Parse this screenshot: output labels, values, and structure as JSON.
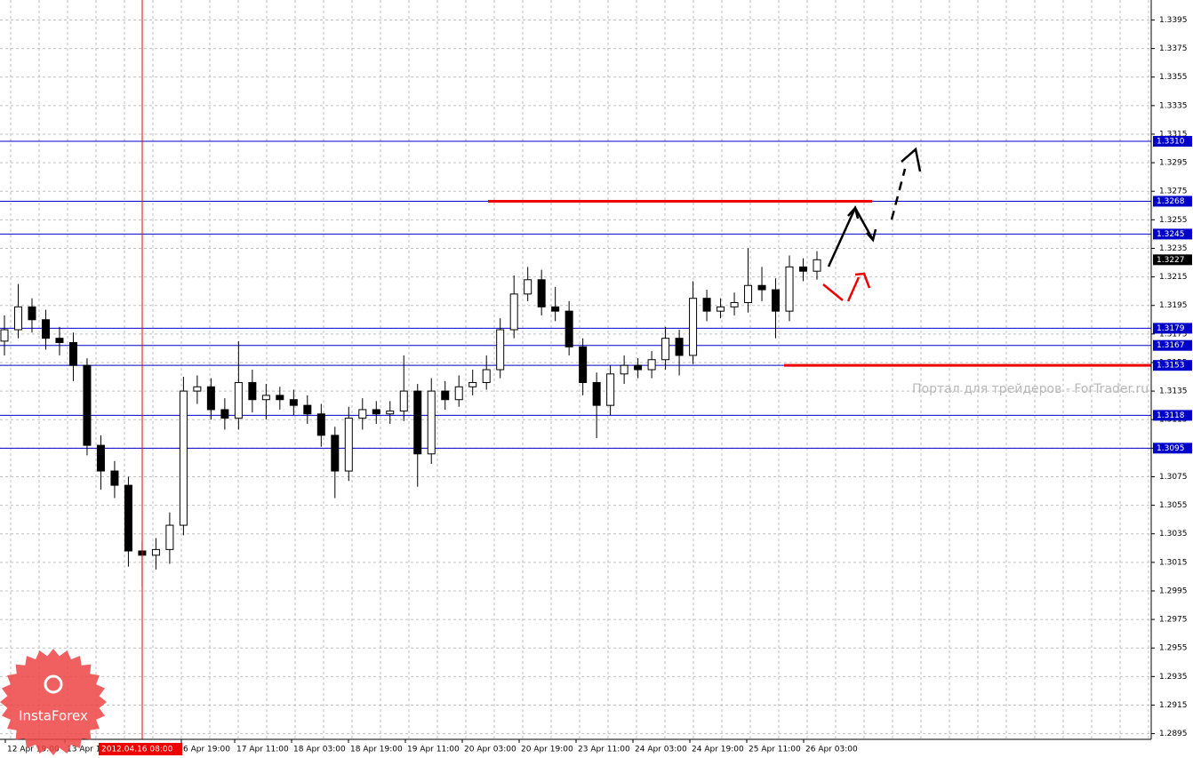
{
  "chart_data": {
    "type": "candlestick",
    "open": [
      1.317,
      1.3178,
      1.3194,
      1.3185,
      1.3172,
      1.3169,
      1.3153,
      1.3097,
      1.3079,
      1.3069,
      1.3023,
      1.302,
      1.3024,
      1.3041,
      1.3135,
      1.3138,
      1.3122,
      1.3116,
      1.3141,
      1.3129,
      1.3132,
      1.3129,
      1.3125,
      1.3119,
      1.3104,
      1.3079,
      1.3116,
      1.3122,
      1.3119,
      1.3121,
      1.3135,
      1.3091,
      1.3135,
      1.3129,
      1.3138,
      1.3141,
      1.315,
      1.3178,
      1.3203,
      1.3213,
      1.3194,
      1.3191,
      1.3166,
      1.3141,
      1.3125,
      1.3147,
      1.3153,
      1.315,
      1.3157,
      1.3172,
      1.316,
      1.32,
      1.3191,
      1.3194,
      1.3197,
      1.3209,
      1.3206,
      1.3191,
      1.3222,
      1.3219
    ],
    "high": [
      1.3188,
      1.321,
      1.32,
      1.3192,
      1.318,
      1.3176,
      1.3158,
      1.3104,
      1.3086,
      1.3075,
      1.303,
      1.3032,
      1.305,
      1.3145,
      1.3146,
      1.3144,
      1.313,
      1.317,
      1.315,
      1.314,
      1.3138,
      1.3136,
      1.3132,
      1.3126,
      1.311,
      1.3124,
      1.313,
      1.3128,
      1.3128,
      1.316,
      1.314,
      1.3144,
      1.3142,
      1.3146,
      1.315,
      1.316,
      1.3186,
      1.3216,
      1.3222,
      1.322,
      1.3208,
      1.3198,
      1.3172,
      1.3148,
      1.3153,
      1.316,
      1.3158,
      1.3163,
      1.318,
      1.3178,
      1.3212,
      1.3206,
      1.32,
      1.3204,
      1.3235,
      1.3222,
      1.3214,
      1.323,
      1.3228,
      1.3233
    ],
    "low": [
      1.316,
      1.3172,
      1.3176,
      1.3164,
      1.316,
      1.3142,
      1.309,
      1.3066,
      1.306,
      1.3012,
      1.2998,
      1.301,
      1.3014,
      1.3034,
      1.3126,
      1.3115,
      1.3108,
      1.3108,
      1.312,
      1.3115,
      1.3122,
      1.3118,
      1.3112,
      1.3096,
      1.306,
      1.3072,
      1.3108,
      1.3112,
      1.3112,
      1.3114,
      1.3068,
      1.3084,
      1.3122,
      1.3124,
      1.3132,
      1.3136,
      1.3144,
      1.3172,
      1.3198,
      1.3188,
      1.3184,
      1.316,
      1.3132,
      1.3102,
      1.3118,
      1.314,
      1.3144,
      1.3144,
      1.315,
      1.3146,
      1.3154,
      1.3184,
      1.3186,
      1.3188,
      1.319,
      1.3198,
      1.3172,
      1.3184,
      1.3212,
      1.3213
    ],
    "close": [
      1.3178,
      1.3194,
      1.3185,
      1.3172,
      1.3169,
      1.3153,
      1.3097,
      1.3079,
      1.3069,
      1.3023,
      1.302,
      1.3024,
      1.3041,
      1.3135,
      1.3138,
      1.3122,
      1.3116,
      1.3141,
      1.3129,
      1.3132,
      1.3129,
      1.3125,
      1.3119,
      1.3104,
      1.3079,
      1.3116,
      1.3122,
      1.3119,
      1.3121,
      1.3135,
      1.3091,
      1.3135,
      1.3129,
      1.3138,
      1.3141,
      1.315,
      1.3178,
      1.3203,
      1.3213,
      1.3194,
      1.3191,
      1.3166,
      1.3141,
      1.3125,
      1.3147,
      1.3153,
      1.315,
      1.3157,
      1.3172,
      1.316,
      1.32,
      1.3191,
      1.3194,
      1.3197,
      1.3209,
      1.3206,
      1.3191,
      1.3222,
      1.3219,
      1.3227
    ],
    "ylim": [
      1.2891,
      1.3409
    ],
    "yticks": [
      1.2895,
      1.2915,
      1.2935,
      1.2955,
      1.2975,
      1.2995,
      1.3015,
      1.3035,
      1.3055,
      1.3075,
      1.3095,
      1.3115,
      1.3135,
      1.3155,
      1.3175,
      1.3195,
      1.3215,
      1.3235,
      1.3255,
      1.3275,
      1.3295,
      1.3315,
      1.3335,
      1.3355,
      1.3375,
      1.3395
    ],
    "levels": [
      {
        "value": 1.331,
        "label": "1.3310"
      },
      1.3268,
      1.3245,
      1.3179,
      1.3167,
      1.3153,
      1.3118,
      1.3095
    ],
    "level_color": "#0000c8",
    "red_levels": [
      1.3268,
      1.3153
    ],
    "current_price": 1.3227,
    "x_labels": [
      "12 Apr 19:00",
      "13 Apr 1",
      "6 Apr 19:00",
      "17 Apr 11:00",
      "18 Apr 03:00",
      "18 Apr 19:00",
      "19 Apr 11:00",
      "20 Apr 03:00",
      "20 Apr 19:00",
      "23 Apr 11:00",
      "24 Apr 03:00",
      "24 Apr 19:00",
      "25 Apr 11:00",
      "26 Apr 03:00"
    ],
    "cursor_label": "2012.04.16 08:00",
    "watermark": "Портал для трейдеров - ForTrader.ru",
    "logo": "InstaForex",
    "grid": true
  }
}
